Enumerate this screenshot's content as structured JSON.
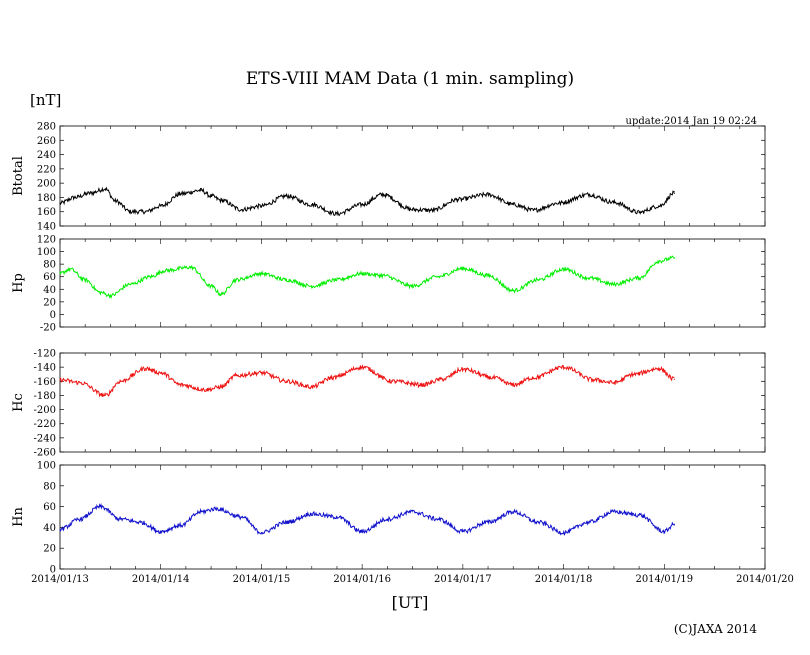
{
  "title": "ETS-VIII MAM Data (1 min. sampling)",
  "unit_label": "[nT]",
  "update_text": "update:2014 Jan 19 02:24",
  "xlabel": "[UT]",
  "copyright": "(C)JAXA 2014",
  "x_tick_labels": [
    "2014/01/13",
    "2014/01/14",
    "2014/01/15",
    "2014/01/16",
    "2014/01/17",
    "2014/01/18",
    "2014/01/19",
    "2014/01/20"
  ],
  "chart_data": [
    {
      "type": "line",
      "ylabel": "Btotal",
      "color": "#000000",
      "ylim": [
        140,
        280
      ],
      "yticks": [
        140,
        160,
        180,
        200,
        220,
        240,
        260,
        280
      ],
      "x_range_days": [
        0,
        7
      ],
      "x": [
        0.0,
        0.15,
        0.3,
        0.45,
        0.55,
        0.7,
        0.85,
        1.0,
        1.2,
        1.4,
        1.5,
        1.6,
        1.8,
        2.0,
        2.25,
        2.5,
        2.75,
        3.0,
        3.2,
        3.5,
        3.7,
        3.95,
        4.25,
        4.5,
        4.7,
        4.95,
        5.25,
        5.5,
        5.75,
        5.95,
        6.1
      ],
      "y": [
        172,
        180,
        186,
        192,
        175,
        160,
        160,
        168,
        185,
        190,
        182,
        176,
        163,
        168,
        182,
        170,
        157,
        170,
        184,
        163,
        162,
        177,
        184,
        170,
        162,
        172,
        184,
        173,
        159,
        168,
        186
      ],
      "noise": 3
    },
    {
      "type": "line",
      "ylabel": "Hp",
      "color": "#00ee00",
      "ylim": [
        -20,
        120
      ],
      "yticks": [
        -20,
        0,
        20,
        40,
        60,
        80,
        100,
        120
      ],
      "x_range_days": [
        0,
        7
      ],
      "x": [
        0.0,
        0.1,
        0.25,
        0.4,
        0.5,
        0.7,
        0.9,
        1.05,
        1.3,
        1.5,
        1.6,
        1.75,
        2.0,
        2.25,
        2.5,
        2.75,
        3.0,
        3.2,
        3.5,
        3.75,
        4.0,
        4.25,
        4.5,
        4.75,
        5.0,
        5.25,
        5.5,
        5.75,
        5.95,
        6.1
      ],
      "y": [
        65,
        72,
        55,
        35,
        30,
        48,
        60,
        70,
        75,
        45,
        32,
        55,
        65,
        55,
        45,
        55,
        65,
        62,
        45,
        60,
        73,
        62,
        38,
        55,
        72,
        58,
        48,
        58,
        85,
        90
      ],
      "noise": 3
    },
    {
      "type": "line",
      "ylabel": "Hc",
      "color": "#ee1111",
      "ylim": [
        -260,
        -120
      ],
      "yticks": [
        -260,
        -240,
        -220,
        -200,
        -180,
        -160,
        -140,
        -120
      ],
      "x_range_days": [
        0,
        7
      ],
      "x": [
        0.0,
        0.2,
        0.45,
        0.6,
        0.85,
        1.0,
        1.2,
        1.45,
        1.6,
        1.75,
        2.0,
        2.25,
        2.5,
        2.7,
        3.0,
        3.3,
        3.6,
        3.8,
        4.0,
        4.3,
        4.5,
        4.7,
        5.0,
        5.3,
        5.5,
        5.7,
        5.95,
        6.1
      ],
      "y": [
        -158,
        -162,
        -180,
        -160,
        -142,
        -148,
        -165,
        -172,
        -168,
        -152,
        -148,
        -160,
        -168,
        -155,
        -140,
        -160,
        -165,
        -157,
        -143,
        -155,
        -165,
        -155,
        -140,
        -158,
        -162,
        -150,
        -142,
        -157
      ],
      "noise": 3
    },
    {
      "type": "line",
      "ylabel": "Hn",
      "color": "#1111cc",
      "ylim": [
        0,
        100
      ],
      "yticks": [
        0,
        20,
        40,
        60,
        80,
        100
      ],
      "x_range_days": [
        0,
        7
      ],
      "x": [
        0.0,
        0.2,
        0.4,
        0.6,
        0.8,
        1.0,
        1.2,
        1.4,
        1.55,
        1.8,
        2.0,
        2.25,
        2.5,
        2.75,
        3.0,
        3.25,
        3.5,
        3.75,
        4.0,
        4.25,
        4.5,
        4.75,
        5.0,
        5.25,
        5.5,
        5.75,
        6.0,
        6.1
      ],
      "y": [
        38,
        48,
        60,
        48,
        45,
        36,
        42,
        55,
        58,
        50,
        35,
        45,
        53,
        50,
        36,
        48,
        55,
        48,
        36,
        45,
        55,
        45,
        35,
        45,
        55,
        52,
        36,
        43
      ],
      "noise": 2
    }
  ]
}
